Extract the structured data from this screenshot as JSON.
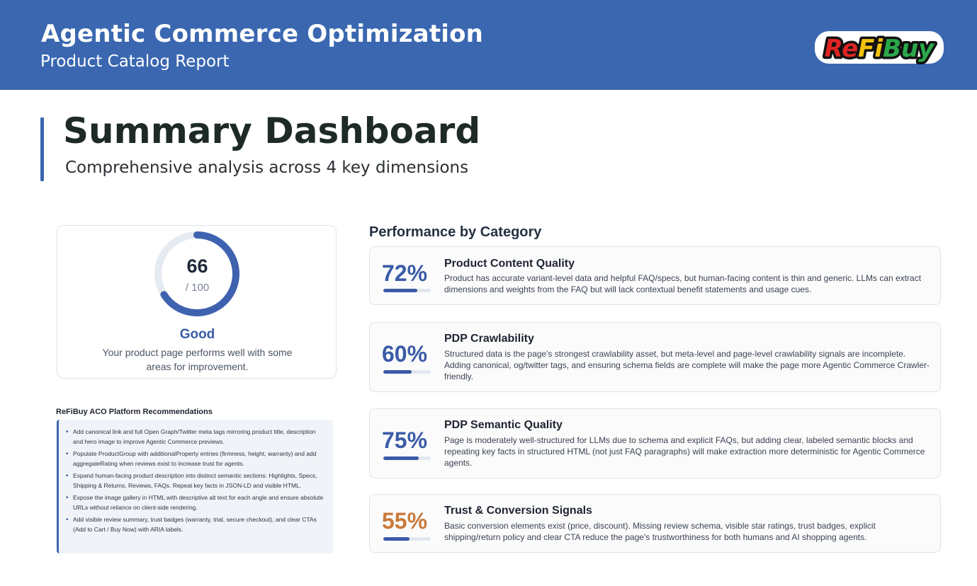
{
  "header": {
    "title": "Agentic Commerce Optimization",
    "subtitle": "Product Catalog Report",
    "logo_text": "ReFiBuy"
  },
  "page": {
    "title": "Summary Dashboard",
    "subtitle": "Comprehensive analysis across 4 key dimensions"
  },
  "score": {
    "value": "66",
    "max_label": "/ 100",
    "fraction": 0.66,
    "rating": "Good",
    "description": "Your product page performs well with some areas for improvement."
  },
  "recommendations": {
    "title": "ReFiBuy ACO Platform Recommendations",
    "items": [
      "Add canonical link and full Open Graph/Twitter meta tags mirroring product title, description and hero image to improve Agentic Commerce previews.",
      "Populate ProductGroup with additionalProperty entries (firmness, height, warranty) and add aggregateRating when reviews exist to increase trust for agents.",
      "Expand human-facing product description into distinct semantic sections: Highlights, Specs, Shipping & Returns, Reviews, FAQs. Repeat key facts in JSON-LD and visible HTML.",
      "Expose the image gallery in HTML with descriptive alt text for each angle and ensure absolute URLs without reliance on client-side rendering.",
      "Add visible review summary, trust badges (warranty, trial, secure checkout), and clear CTAs (Add to Cart / Buy Now) with ARIA labels."
    ]
  },
  "performance": {
    "title": "Performance by Category",
    "categories": [
      {
        "percent_label": "72%",
        "fraction": 0.72,
        "color": "#3a5ba6",
        "name": "Product Content Quality",
        "description": "Product has accurate variant-level data and helpful FAQ/specs, but human-facing content is thin and generic. LLMs can extract dimensions and weights from the FAQ but will lack contextual benefit statements and usage cues."
      },
      {
        "percent_label": "60%",
        "fraction": 0.6,
        "color": "#3a5ba6",
        "name": "PDP Crawlability",
        "description": "Structured data is the page's strongest crawlability asset, but meta-level and page-level crawlability signals are incomplete. Adding canonical, og/twitter tags, and ensuring schema fields are complete will make the page more Agentic Commerce Crawler-friendly."
      },
      {
        "percent_label": "75%",
        "fraction": 0.75,
        "color": "#3a5ba6",
        "name": "PDP Semantic Quality",
        "description": "Page is moderately well-structured for LLMs due to schema and explicit FAQs, but adding clear, labeled semantic blocks and repeating key facts in structured HTML (not just FAQ paragraphs) will make extraction more deterministic for Agentic Commerce agents."
      },
      {
        "percent_label": "55%",
        "fraction": 0.55,
        "color": "#c97a3a",
        "name": "Trust & Conversion Signals",
        "description": "Basic conversion elements exist (price, discount). Missing review schema, visible star ratings, trust badges, explicit shipping/return policy and clear CTA reduce the page's trustworthiness for both humans and AI shopping agents."
      }
    ]
  }
}
